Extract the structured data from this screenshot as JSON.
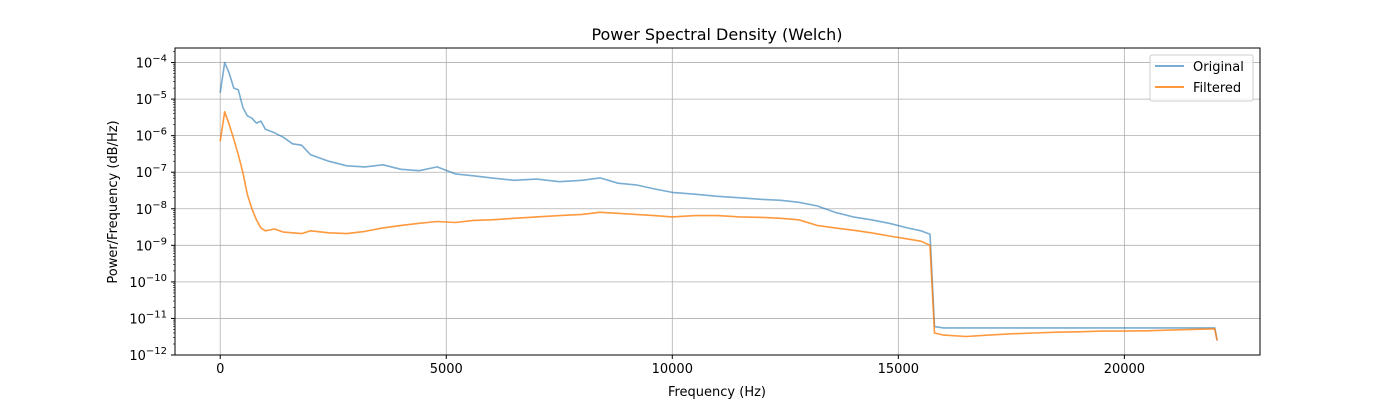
{
  "chart_data": {
    "type": "line",
    "title": "Power Spectral Density (Welch)",
    "xlabel": "Frequency (Hz)",
    "ylabel": "Power/Frequency (dB/Hz)",
    "xlim": [
      -1000,
      23000
    ],
    "ylim": [
      1e-12,
      0.00025
    ],
    "yscale": "log",
    "grid": true,
    "legend_position": "top-right",
    "x_ticks": [
      0,
      5000,
      10000,
      15000,
      20000
    ],
    "x_tick_labels": [
      "0",
      "5000",
      "10000",
      "15000",
      "20000"
    ],
    "y_ticks": [
      1e-12,
      1e-11,
      1e-10,
      1e-09,
      1e-08,
      1e-07,
      1e-06,
      1e-05,
      0.0001
    ],
    "y_tick_labels": [
      {
        "base": "10",
        "exp": "−12"
      },
      {
        "base": "10",
        "exp": "−11"
      },
      {
        "base": "10",
        "exp": "−10"
      },
      {
        "base": "10",
        "exp": "−9"
      },
      {
        "base": "10",
        "exp": "−8"
      },
      {
        "base": "10",
        "exp": "−7"
      },
      {
        "base": "10",
        "exp": "−6"
      },
      {
        "base": "10",
        "exp": "−5"
      },
      {
        "base": "10",
        "exp": "−4"
      }
    ],
    "series": [
      {
        "name": "Original",
        "color": "#1f77b4",
        "opacity": 0.6,
        "x": [
          0,
          100,
          200,
          300,
          400,
          500,
          600,
          700,
          800,
          900,
          1000,
          1200,
          1400,
          1600,
          1800,
          2000,
          2400,
          2800,
          3200,
          3600,
          4000,
          4400,
          4800,
          5200,
          5600,
          6000,
          6500,
          7000,
          7500,
          8000,
          8400,
          8800,
          9200,
          9600,
          10000,
          10500,
          11000,
          11500,
          12000,
          12400,
          12800,
          13200,
          13600,
          14000,
          14400,
          14800,
          15200,
          15500,
          15700,
          15800,
          16000,
          16500,
          17000,
          17500,
          18000,
          18500,
          19000,
          19500,
          20000,
          20500,
          21000,
          21500,
          22000,
          22050
        ],
        "y": [
          1.5e-05,
          0.0001,
          5e-05,
          2e-05,
          1.8e-05,
          6e-06,
          3.5e-06,
          3e-06,
          2.2e-06,
          2.5e-06,
          1.5e-06,
          1.2e-06,
          9e-07,
          6e-07,
          5.5e-07,
          3e-07,
          2e-07,
          1.5e-07,
          1.4e-07,
          1.6e-07,
          1.2e-07,
          1.1e-07,
          1.4e-07,
          9e-08,
          8e-08,
          7e-08,
          6e-08,
          6.5e-08,
          5.5e-08,
          6e-08,
          7e-08,
          5e-08,
          4.5e-08,
          3.5e-08,
          2.8e-08,
          2.5e-08,
          2.2e-08,
          2e-08,
          1.8e-08,
          1.7e-08,
          1.5e-08,
          1.2e-08,
          8e-09,
          6e-09,
          5e-09,
          4e-09,
          3e-09,
          2.5e-09,
          2e-09,
          6e-12,
          5.5e-12,
          5.5e-12,
          5.5e-12,
          5.5e-12,
          5.5e-12,
          5.5e-12,
          5.5e-12,
          5.5e-12,
          5.5e-12,
          5.5e-12,
          5.5e-12,
          5.5e-12,
          5.5e-12,
          2.5e-12
        ]
      },
      {
        "name": "Filtered",
        "color": "#ff7f0e",
        "opacity": 0.8,
        "x": [
          0,
          100,
          200,
          300,
          400,
          500,
          600,
          700,
          800,
          900,
          1000,
          1200,
          1400,
          1600,
          1800,
          2000,
          2400,
          2800,
          3200,
          3600,
          4000,
          4400,
          4800,
          5200,
          5600,
          6000,
          6500,
          7000,
          7500,
          8000,
          8400,
          8800,
          9200,
          9600,
          10000,
          10500,
          11000,
          11500,
          12000,
          12400,
          12800,
          13200,
          13600,
          14000,
          14400,
          14800,
          15200,
          15500,
          15700,
          15800,
          16000,
          16500,
          17000,
          17500,
          18000,
          18500,
          19000,
          19500,
          20000,
          20500,
          21000,
          21500,
          22000,
          22050
        ],
        "y": [
          7e-07,
          4.5e-06,
          2e-06,
          8e-07,
          3e-07,
          1e-07,
          2.5e-08,
          1e-08,
          5e-09,
          3e-09,
          2.5e-09,
          2.8e-09,
          2.3e-09,
          2.2e-09,
          2.1e-09,
          2.5e-09,
          2.2e-09,
          2.1e-09,
          2.4e-09,
          3e-09,
          3.5e-09,
          4e-09,
          4.5e-09,
          4.2e-09,
          4.8e-09,
          5e-09,
          5.5e-09,
          6e-09,
          6.5e-09,
          7e-09,
          8e-09,
          7.5e-09,
          7e-09,
          6.5e-09,
          6e-09,
          6.5e-09,
          6.5e-09,
          6e-09,
          5.8e-09,
          5.5e-09,
          5e-09,
          3.5e-09,
          3e-09,
          2.6e-09,
          2.2e-09,
          1.8e-09,
          1.5e-09,
          1.3e-09,
          1e-09,
          4e-12,
          3.5e-12,
          3.2e-12,
          3.5e-12,
          3.8e-12,
          4e-12,
          4.2e-12,
          4.3e-12,
          4.5e-12,
          4.5e-12,
          4.6e-12,
          4.8e-12,
          5e-12,
          5.2e-12,
          2.5e-12
        ]
      }
    ]
  }
}
